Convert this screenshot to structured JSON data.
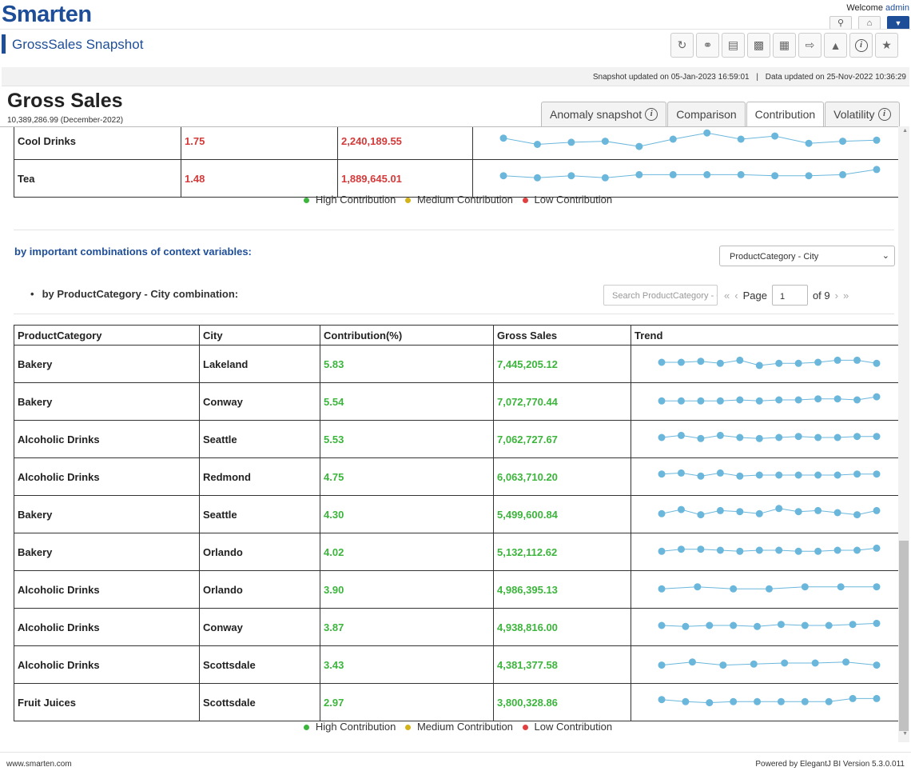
{
  "header": {
    "logo": "Smarten",
    "welcome_text": "Welcome",
    "user": "admin",
    "app_title": "GrossSales Snapshot",
    "toolbar_icons": [
      "refresh-icon",
      "share-link-icon",
      "save-icon",
      "save-as-icon",
      "schedule-icon",
      "export-icon",
      "alert-bell-icon",
      "info-icon",
      "tag-icon"
    ]
  },
  "status": {
    "snapshot_updated": "Snapshot updated on 05-Jan-2023 16:59:01",
    "separator": "|",
    "data_updated": "Data updated on 25-Nov-2022 10:36:29"
  },
  "page": {
    "title": "Gross Sales",
    "subtitle": "10,389,286.99 (December-2022)"
  },
  "tabs": [
    {
      "label": "Anomaly snapshot",
      "info": true,
      "active": false
    },
    {
      "label": "Comparison",
      "info": false,
      "active": false
    },
    {
      "label": "Contribution",
      "info": false,
      "active": true
    },
    {
      "label": "Volatility",
      "info": true,
      "active": false
    }
  ],
  "top_table": {
    "rows": [
      {
        "name": "Cool Drinks",
        "contribution": "1.75",
        "gross_sales": "2,240,189.55",
        "trend": [
          0.45,
          0.75,
          0.65,
          0.6,
          0.85,
          0.5,
          0.2,
          0.5,
          0.35,
          0.7,
          0.6,
          0.55
        ]
      },
      {
        "name": "Tea",
        "contribution": "1.48",
        "gross_sales": "1,889,645.01",
        "trend": [
          0.45,
          0.55,
          0.45,
          0.55,
          0.4,
          0.4,
          0.4,
          0.4,
          0.45,
          0.45,
          0.4,
          0.15
        ]
      }
    ]
  },
  "legend": {
    "high": "High Contribution",
    "medium": "Medium Contribution",
    "low": "Low Contribution",
    "colors": {
      "high": "#3cb53c",
      "medium": "#d4b21a",
      "low": "#e04040"
    }
  },
  "context": {
    "heading": "by important combinations of context variables:",
    "selected_combination": "ProductCategory - City",
    "combo_label": "by ProductCategory - City combination:",
    "search_placeholder": "Search ProductCategory - City",
    "page_label": "Page",
    "page_value": "1",
    "page_of": "of 9"
  },
  "combo_table": {
    "headers": [
      "ProductCategory",
      "City",
      "Contribution(%)",
      "Gross Sales",
      "Trend"
    ],
    "rows": [
      {
        "category": "Bakery",
        "city": "Lakeland",
        "contribution": "5.83",
        "gross_sales": "7,445,205.12",
        "trend": [
          0.5,
          0.5,
          0.45,
          0.55,
          0.4,
          0.65,
          0.55,
          0.55,
          0.5,
          0.4,
          0.4,
          0.55
        ]
      },
      {
        "category": "Bakery",
        "city": "Conway",
        "contribution": "5.54",
        "gross_sales": "7,072,770.44",
        "trend": [
          0.55,
          0.55,
          0.55,
          0.55,
          0.5,
          0.55,
          0.5,
          0.5,
          0.45,
          0.45,
          0.5,
          0.35
        ]
      },
      {
        "category": "Alcoholic Drinks",
        "city": "Seattle",
        "contribution": "5.53",
        "gross_sales": "7,062,727.67",
        "trend": [
          0.5,
          0.4,
          0.55,
          0.4,
          0.5,
          0.55,
          0.5,
          0.45,
          0.5,
          0.5,
          0.45,
          0.45
        ]
      },
      {
        "category": "Alcoholic Drinks",
        "city": "Redmond",
        "contribution": "4.75",
        "gross_sales": "6,063,710.20",
        "trend": [
          0.45,
          0.4,
          0.55,
          0.4,
          0.55,
          0.5,
          0.5,
          0.5,
          0.5,
          0.5,
          0.45,
          0.45
        ]
      },
      {
        "category": "Bakery",
        "city": "Seattle",
        "contribution": "4.30",
        "gross_sales": "5,499,600.84",
        "trend": [
          0.55,
          0.35,
          0.6,
          0.4,
          0.45,
          0.55,
          0.3,
          0.45,
          0.4,
          0.5,
          0.6,
          0.4
        ]
      },
      {
        "category": "Bakery",
        "city": "Orlando",
        "contribution": "4.02",
        "gross_sales": "5,132,112.62",
        "trend": [
          0.55,
          0.45,
          0.45,
          0.5,
          0.55,
          0.5,
          0.5,
          0.55,
          0.55,
          0.5,
          0.5,
          0.4
        ]
      },
      {
        "category": "Alcoholic Drinks",
        "city": "Orlando",
        "contribution": "3.90",
        "gross_sales": "4,986,395.13",
        "trend": [
          0.55,
          0.45,
          0.55,
          0.55,
          0.45,
          0.45,
          0.45
        ]
      },
      {
        "category": "Alcoholic Drinks",
        "city": "Conway",
        "contribution": "3.87",
        "gross_sales": "4,938,816.00",
        "trend": [
          0.5,
          0.55,
          0.5,
          0.5,
          0.55,
          0.45,
          0.5,
          0.5,
          0.45,
          0.4
        ]
      },
      {
        "category": "Alcoholic Drinks",
        "city": "Scottsdale",
        "contribution": "3.43",
        "gross_sales": "4,381,377.58",
        "trend": [
          0.6,
          0.45,
          0.6,
          0.55,
          0.5,
          0.5,
          0.45,
          0.6
        ]
      },
      {
        "category": "Fruit Juices",
        "city": "Scottsdale",
        "contribution": "2.97",
        "gross_sales": "3,800,328.86",
        "trend": [
          0.45,
          0.55,
          0.6,
          0.55,
          0.55,
          0.55,
          0.55,
          0.55,
          0.4,
          0.4
        ]
      }
    ]
  },
  "footer": {
    "left": "www.smarten.com",
    "right": "Powered by ElegantJ BI Version 5.3.0.011"
  }
}
